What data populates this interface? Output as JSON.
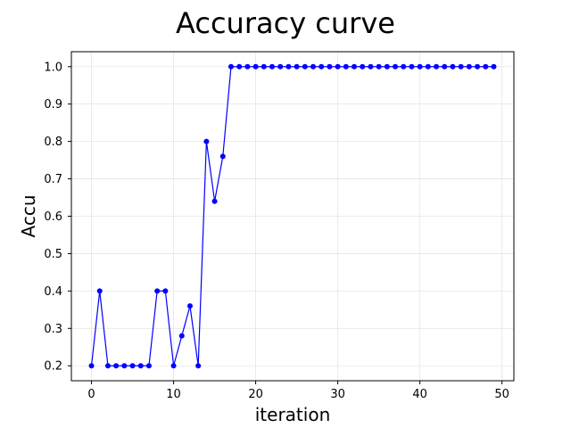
{
  "chart_data": {
    "type": "line",
    "title": "Accuracy curve",
    "xlabel": "iteration",
    "ylabel": "Accu",
    "xlim": [
      -2.45,
      51.45
    ],
    "ylim": [
      0.16,
      1.04
    ],
    "xticks": [
      0,
      10,
      20,
      30,
      40,
      50
    ],
    "yticks": [
      0.2,
      0.3,
      0.4,
      0.5,
      0.6,
      0.7,
      0.8,
      0.9,
      1.0
    ],
    "ytick_labels": [
      "0.2",
      "0.3",
      "0.4",
      "0.5",
      "0.6",
      "0.7",
      "0.8",
      "0.9",
      "1.0"
    ],
    "grid": true,
    "series": [
      {
        "color": "#0000ff",
        "marker": "circle",
        "x": [
          0,
          1,
          2,
          3,
          4,
          5,
          6,
          7,
          8,
          9,
          10,
          11,
          12,
          13,
          14,
          15,
          16,
          17,
          18,
          19,
          20,
          21,
          22,
          23,
          24,
          25,
          26,
          27,
          28,
          29,
          30,
          31,
          32,
          33,
          34,
          35,
          36,
          37,
          38,
          39,
          40,
          41,
          42,
          43,
          44,
          45,
          46,
          47,
          48,
          49
        ],
        "y": [
          0.2,
          0.4,
          0.2,
          0.2,
          0.2,
          0.2,
          0.2,
          0.2,
          0.4,
          0.4,
          0.2,
          0.28,
          0.36,
          0.2,
          0.8,
          0.64,
          0.76,
          1.0,
          1.0,
          1.0,
          1.0,
          1.0,
          1.0,
          1.0,
          1.0,
          1.0,
          1.0,
          1.0,
          1.0,
          1.0,
          1.0,
          1.0,
          1.0,
          1.0,
          1.0,
          1.0,
          1.0,
          1.0,
          1.0,
          1.0,
          1.0,
          1.0,
          1.0,
          1.0,
          1.0,
          1.0,
          1.0,
          1.0,
          1.0,
          1.0
        ]
      }
    ]
  }
}
